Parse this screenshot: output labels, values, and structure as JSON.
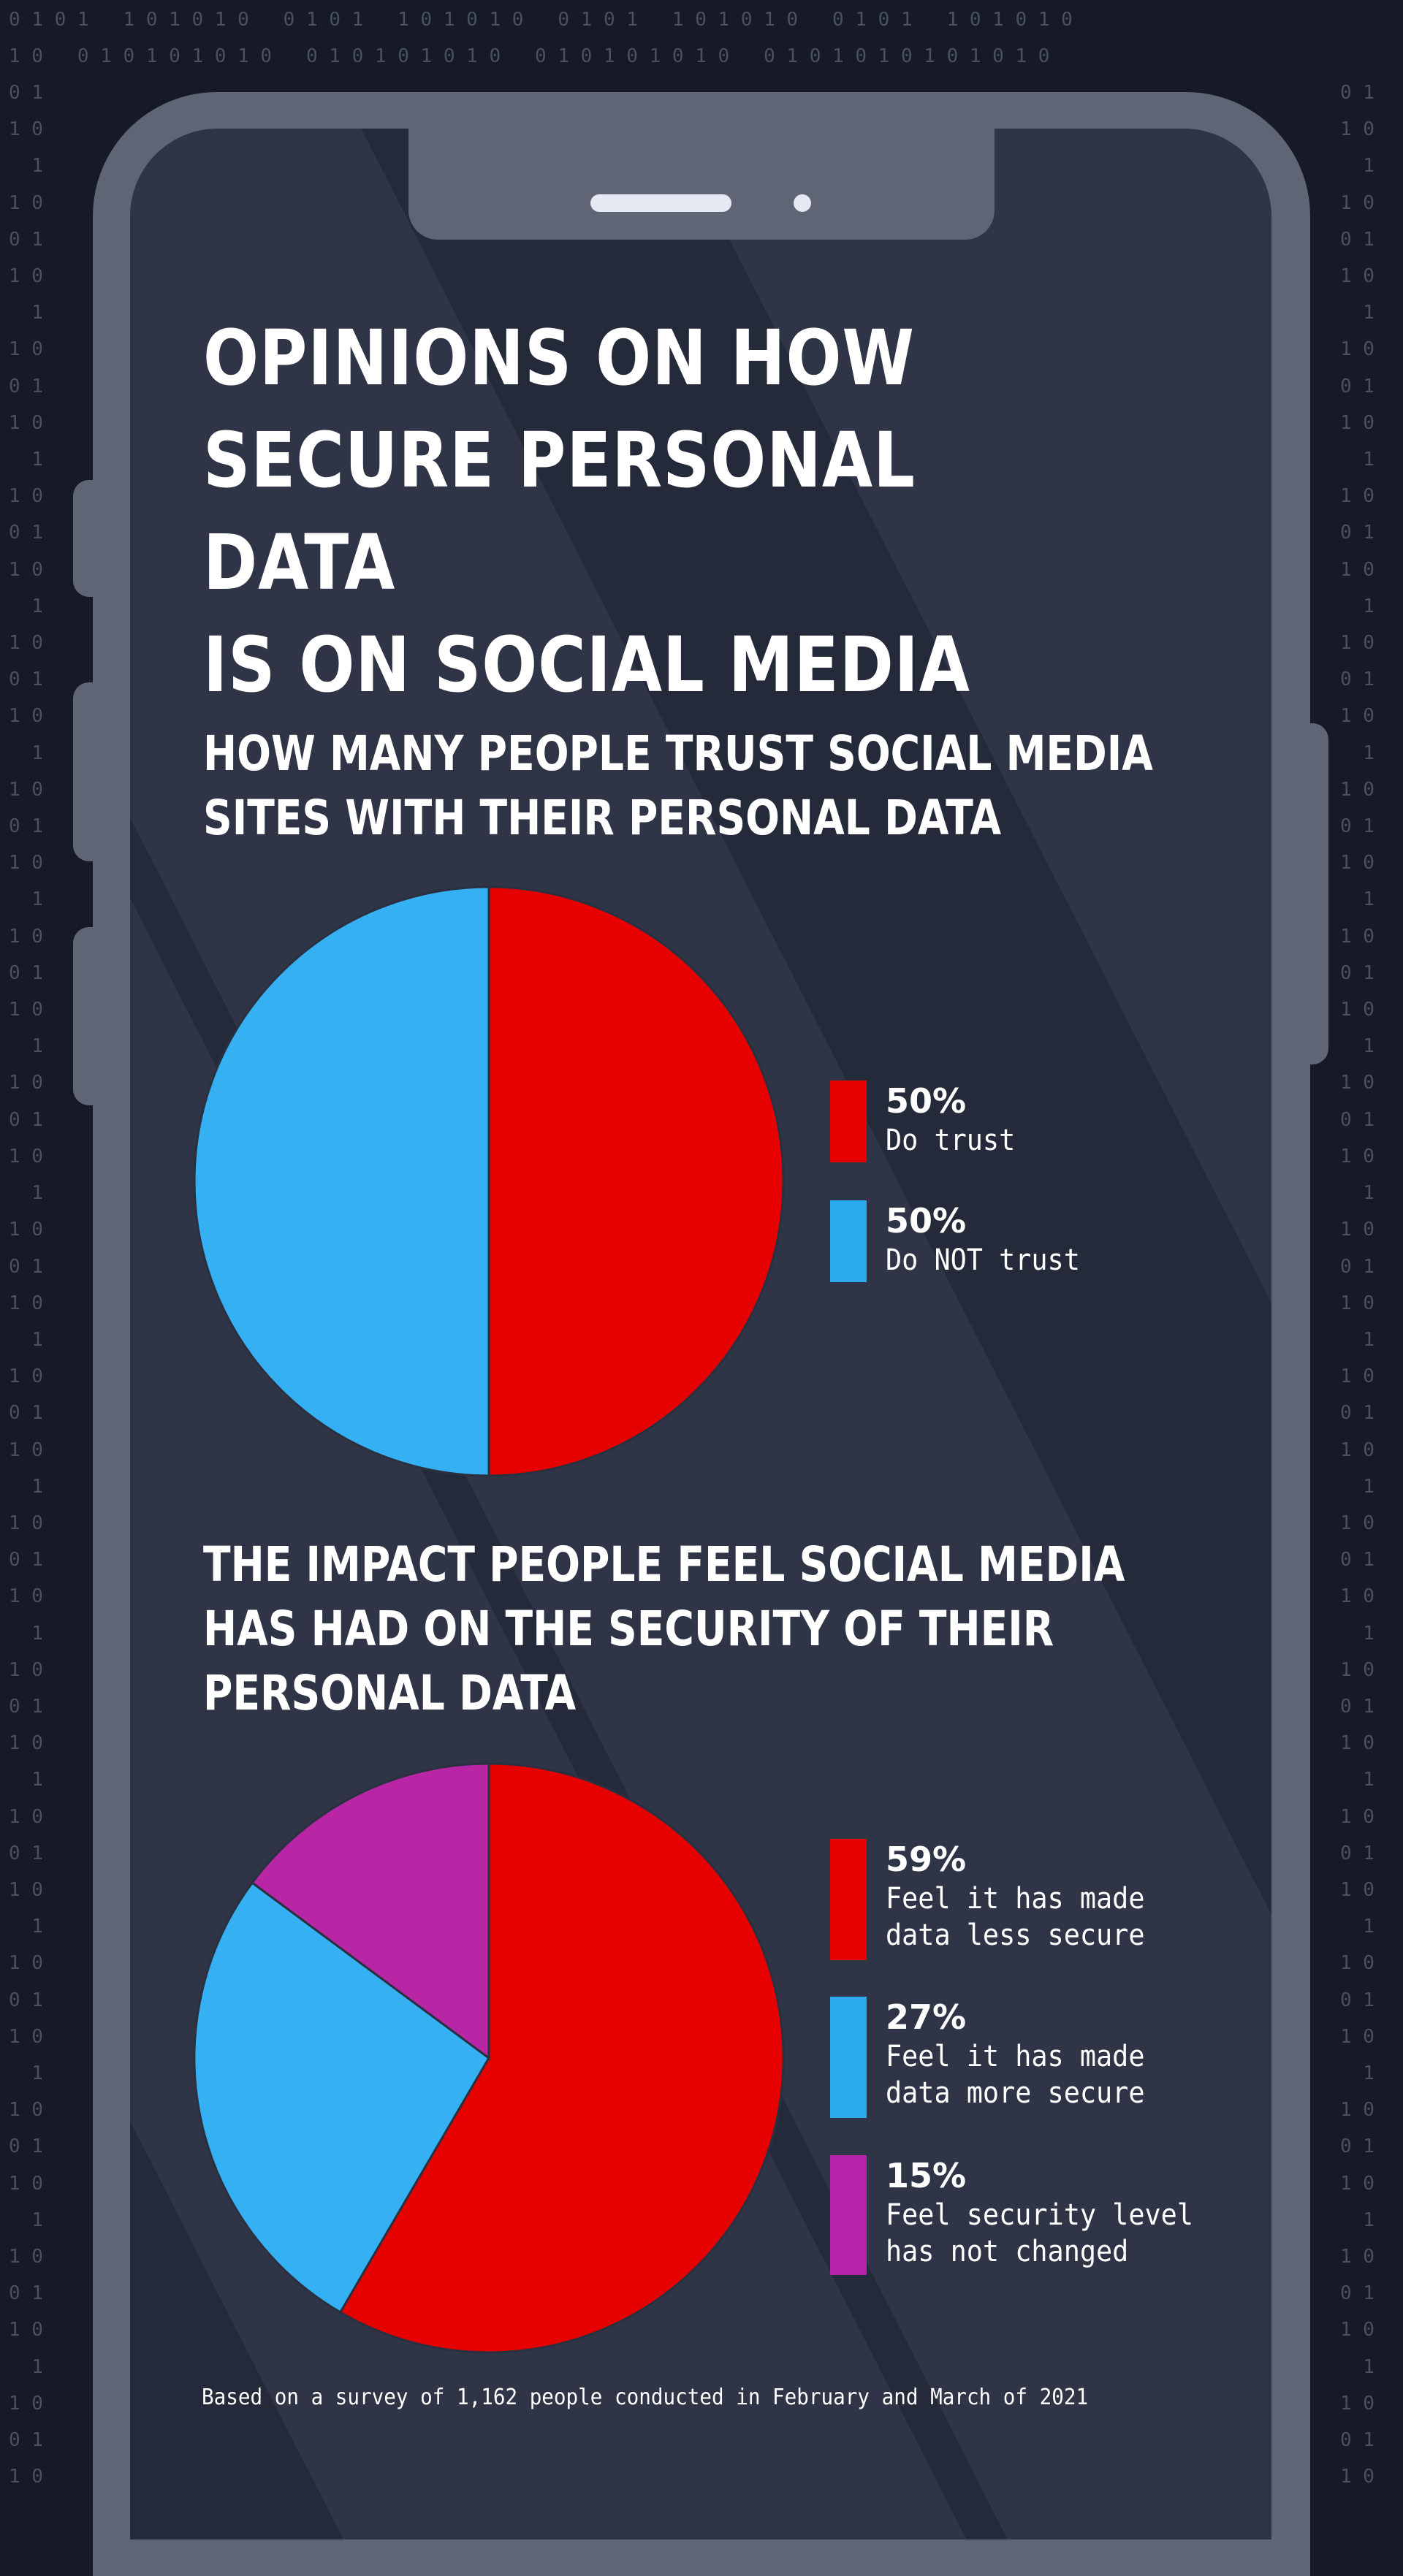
{
  "background": {
    "binary_top_rows": [
      "0 1 0 1   1 0 1 0 1 0   0 1 0 1   1 0 1 0 1 0   0 1 0 1   1 0 1 0 1 0   0 1 0 1   1 0 1 0 1 0",
      "1 0   0 1 0 1 0 1 0 1 0   0 1 0 1 0 1 0 1 0   0 1 0 1 0 1 0 1 0   0 1 0 1 0 1 0 1 0 1 0 1 0"
    ],
    "binary_side_pattern": [
      "0 1",
      "1 0",
      "  1",
      "1 0"
    ],
    "colors": {
      "page_bg": "#151a26",
      "binary_digits": "#4a5061",
      "phone_frame": "#5f6574",
      "screen_light": "#2f3446",
      "screen_dark_stripe": "#252a3a"
    }
  },
  "header": {
    "title_lines": [
      "OPINIONS ON HOW",
      "SECURE PERSONAL DATA",
      "IS ON SOCIAL MEDIA"
    ]
  },
  "sections": [
    {
      "subtitle_lines": [
        "HOW MANY PEOPLE TRUST SOCIAL MEDIA",
        "SITES WITH THEIR PERSONAL DATA"
      ],
      "legend": [
        {
          "pct": "50%",
          "label": "Do trust",
          "color": "#e60000"
        },
        {
          "pct": "50%",
          "label": "Do NOT trust",
          "color": "#2aa9ee"
        }
      ]
    },
    {
      "subtitle_lines": [
        "THE IMPACT PEOPLE FEEL SOCIAL MEDIA",
        "HAS HAD ON THE SECURITY OF THEIR",
        "PERSONAL DATA"
      ],
      "legend": [
        {
          "pct": "59%",
          "label": "Feel it has made\ndata less secure",
          "color": "#e60000"
        },
        {
          "pct": "27%",
          "label": "Feel it has made\ndata more secure",
          "color": "#2aa9ee"
        },
        {
          "pct": "15%",
          "label": "Feel security level\nhas not changed",
          "color": "#b723a8"
        }
      ]
    }
  ],
  "footnote": "Based on a survey of 1,162 people conducted in February and March of 2021",
  "chart_data": [
    {
      "type": "pie",
      "title": "HOW MANY PEOPLE TRUST SOCIAL MEDIA SITES WITH THEIR PERSONAL DATA",
      "categories": [
        "Do trust",
        "Do NOT trust"
      ],
      "values": [
        50,
        50
      ],
      "colors": [
        "#e60000",
        "#35b0f2"
      ],
      "unit": "%",
      "legend_position": "right",
      "start_angle": "12 o'clock, clockwise"
    },
    {
      "type": "pie",
      "title": "THE IMPACT PEOPLE FEEL SOCIAL MEDIA HAS HAD ON THE SECURITY OF THEIR PERSONAL DATA",
      "categories": [
        "Feel it has made data less secure",
        "Feel it has made data more secure",
        "Feel security level has not changed"
      ],
      "values": [
        59,
        27,
        15
      ],
      "colors": [
        "#e60000",
        "#35b0f2",
        "#b826a5"
      ],
      "unit": "%",
      "legend_position": "right",
      "start_angle": "12 o'clock, clockwise"
    }
  ]
}
